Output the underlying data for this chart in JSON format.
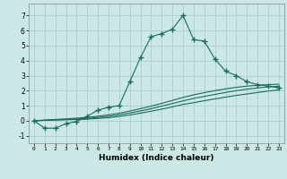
{
  "xlabel": "Humidex (Indice chaleur)",
  "bg_color": "#cce8e6",
  "grid_color": "#aacfcd",
  "line_color": "#1a6b5a",
  "xlim": [
    -0.5,
    23.5
  ],
  "ylim": [
    -1.5,
    7.8
  ],
  "xticks": [
    0,
    1,
    2,
    3,
    4,
    5,
    6,
    7,
    8,
    9,
    10,
    11,
    12,
    13,
    14,
    15,
    16,
    17,
    18,
    19,
    20,
    21,
    22,
    23
  ],
  "yticks": [
    -1,
    0,
    1,
    2,
    3,
    4,
    5,
    6,
    7
  ],
  "series": [
    {
      "x": [
        0,
        1,
        2,
        3,
        4,
        5,
        6,
        7,
        8,
        9,
        10,
        11,
        12,
        13,
        14,
        15,
        16,
        17,
        18,
        19,
        20,
        21,
        22,
        23
      ],
      "y": [
        0.0,
        -0.5,
        -0.5,
        -0.2,
        -0.05,
        0.3,
        0.7,
        0.9,
        1.0,
        2.6,
        4.2,
        5.6,
        5.8,
        6.1,
        7.0,
        5.4,
        5.3,
        4.1,
        3.3,
        3.0,
        2.6,
        2.4,
        2.3,
        2.2
      ],
      "has_markers": true
    },
    {
      "x": [
        0,
        1,
        2,
        3,
        4,
        5,
        6,
        7,
        8,
        9,
        10,
        11,
        12,
        13,
        14,
        15,
        16,
        17,
        18,
        19,
        20,
        21,
        22,
        23
      ],
      "y": [
        0.0,
        0.02,
        0.04,
        0.06,
        0.08,
        0.1,
        0.15,
        0.2,
        0.28,
        0.38,
        0.5,
        0.63,
        0.77,
        0.92,
        1.08,
        1.2,
        1.33,
        1.45,
        1.57,
        1.68,
        1.78,
        1.88,
        1.97,
        2.05
      ],
      "has_markers": false
    },
    {
      "x": [
        0,
        1,
        2,
        3,
        4,
        5,
        6,
        7,
        8,
        9,
        10,
        11,
        12,
        13,
        14,
        15,
        16,
        17,
        18,
        19,
        20,
        21,
        22,
        23
      ],
      "y": [
        0.0,
        0.03,
        0.06,
        0.09,
        0.12,
        0.15,
        0.22,
        0.29,
        0.39,
        0.51,
        0.65,
        0.8,
        0.97,
        1.14,
        1.32,
        1.48,
        1.62,
        1.75,
        1.88,
        2.0,
        2.1,
        2.18,
        2.25,
        2.3
      ],
      "has_markers": false
    },
    {
      "x": [
        0,
        1,
        2,
        3,
        4,
        5,
        6,
        7,
        8,
        9,
        10,
        11,
        12,
        13,
        14,
        15,
        16,
        17,
        18,
        19,
        20,
        21,
        22,
        23
      ],
      "y": [
        0.0,
        0.04,
        0.08,
        0.12,
        0.17,
        0.22,
        0.3,
        0.39,
        0.5,
        0.64,
        0.8,
        0.97,
        1.15,
        1.35,
        1.55,
        1.72,
        1.87,
        2.0,
        2.12,
        2.22,
        2.3,
        2.36,
        2.4,
        2.43
      ],
      "has_markers": false
    }
  ]
}
